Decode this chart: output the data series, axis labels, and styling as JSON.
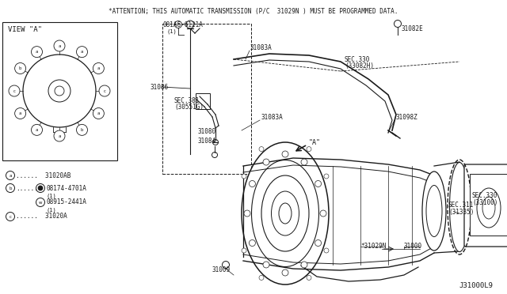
{
  "background_color": "#ffffff",
  "line_color": "#1a1a1a",
  "text_color": "#1a1a1a",
  "attention_text": "*ATTENTION; THIS AUTOMATIC TRANSMISSION (P/C  31029N ) MUST BE PROGRAMMED DATA.",
  "diagram_code": "J31000L9",
  "view_a_title": "VIEW \"A\"",
  "figsize": [
    6.4,
    3.72
  ],
  "dpi": 100
}
